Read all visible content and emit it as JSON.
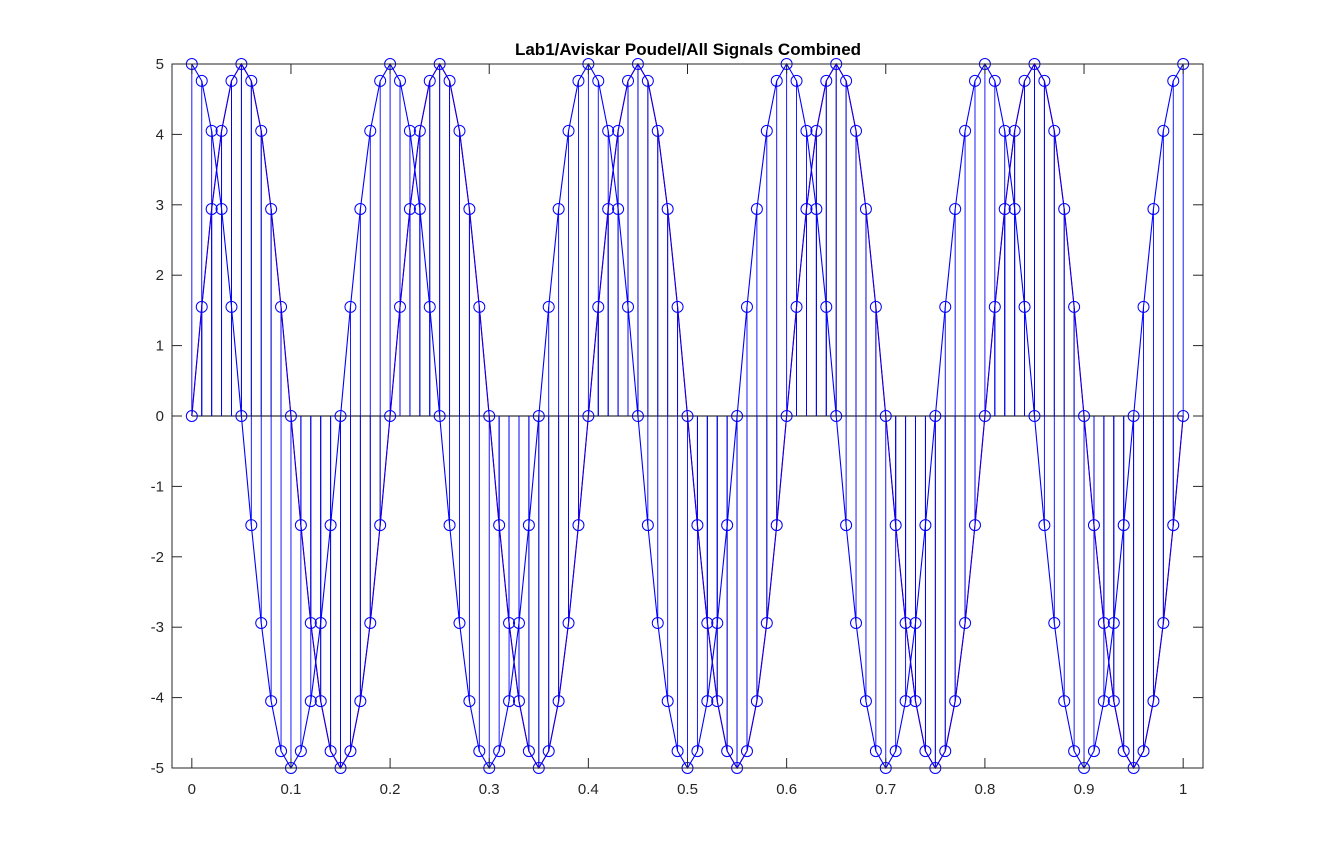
{
  "chart_data": {
    "type": "line",
    "title": "Lab1/Aviskar Poudel/All Signals Combined",
    "xlabel": "",
    "ylabel": "",
    "xlim": [
      -0.02,
      1.02
    ],
    "ylim": [
      -5,
      5
    ],
    "xticks": [
      "0",
      "0.1",
      "0.2",
      "0.3",
      "0.4",
      "0.5",
      "0.6",
      "0.7",
      "0.8",
      "0.9",
      "1"
    ],
    "yticks": [
      "-5",
      "-4",
      "-3",
      "-2",
      "-1",
      "0",
      "1",
      "2",
      "3",
      "4",
      "5"
    ],
    "grid": false,
    "legend": "none",
    "x": [
      0,
      0.01,
      0.02,
      0.03,
      0.04,
      0.05,
      0.06,
      0.07,
      0.08,
      0.09,
      0.1,
      0.11,
      0.12,
      0.13,
      0.14,
      0.15,
      0.16,
      0.17,
      0.18,
      0.19,
      0.2,
      0.21,
      0.22,
      0.23,
      0.24,
      0.25,
      0.26,
      0.27,
      0.28,
      0.29,
      0.3,
      0.31,
      0.32,
      0.33,
      0.34,
      0.35,
      0.36,
      0.37,
      0.38,
      0.39,
      0.4,
      0.41,
      0.42,
      0.43,
      0.44,
      0.45,
      0.46,
      0.47,
      0.48,
      0.49,
      0.5,
      0.51,
      0.52,
      0.53,
      0.54,
      0.55,
      0.56,
      0.57,
      0.58,
      0.59,
      0.6,
      0.61,
      0.62,
      0.63,
      0.64,
      0.65,
      0.66,
      0.67,
      0.68,
      0.69,
      0.7,
      0.71,
      0.72,
      0.73,
      0.74,
      0.75,
      0.76,
      0.77,
      0.78,
      0.79,
      0.8,
      0.81,
      0.82,
      0.83,
      0.84,
      0.85,
      0.86,
      0.87,
      0.88,
      0.89,
      0.9,
      0.91,
      0.92,
      0.93,
      0.94,
      0.95,
      0.96,
      0.97,
      0.98,
      0.99,
      1
    ],
    "series": [
      {
        "color": "#ff0000",
        "marker": "none",
        "stem": true,
        "stem_color": "#000000",
        "values": [
          0,
          1.55,
          2.94,
          4.05,
          4.76,
          5,
          4.76,
          4.05,
          2.94,
          1.55,
          0,
          -1.55,
          -2.94,
          -4.05,
          -4.76,
          -5,
          -4.76,
          -4.05,
          -2.94,
          -1.55,
          0,
          1.55,
          2.94,
          4.05,
          4.76,
          5,
          4.76,
          4.05,
          2.94,
          1.55,
          0,
          -1.55,
          -2.94,
          -4.05,
          -4.76,
          -5,
          -4.76,
          -4.05,
          -2.94,
          -1.55,
          0,
          1.55,
          2.94,
          4.05,
          4.76,
          5,
          4.76,
          4.05,
          2.94,
          1.55,
          0,
          -1.55,
          -2.94,
          -4.05,
          -4.76,
          -5,
          -4.76,
          -4.05,
          -2.94,
          -1.55,
          0,
          1.55,
          2.94,
          4.05,
          4.76,
          5,
          4.76,
          4.05,
          2.94,
          1.55,
          0,
          -1.55,
          -2.94,
          -4.05,
          -4.76,
          -5,
          -4.76,
          -4.05,
          -2.94,
          -1.55,
          0,
          1.55,
          2.94,
          4.05,
          4.76,
          5,
          4.76,
          4.05,
          2.94,
          1.55,
          0,
          -1.55,
          -2.94,
          -4.05,
          -4.76,
          -5,
          -4.76,
          -4.05,
          -2.94,
          -1.55,
          0
        ]
      },
      {
        "color": "#0000ff",
        "marker": "circle",
        "stem": true,
        "stem_color": "#0000ff",
        "values": [
          0,
          1.55,
          2.94,
          4.05,
          4.76,
          5,
          4.76,
          4.05,
          2.94,
          1.55,
          0,
          -1.55,
          -2.94,
          -4.05,
          -4.76,
          -5,
          -4.76,
          -4.05,
          -2.94,
          -1.55,
          0,
          1.55,
          2.94,
          4.05,
          4.76,
          5,
          4.76,
          4.05,
          2.94,
          1.55,
          0,
          -1.55,
          -2.94,
          -4.05,
          -4.76,
          -5,
          -4.76,
          -4.05,
          -2.94,
          -1.55,
          0,
          1.55,
          2.94,
          4.05,
          4.76,
          5,
          4.76,
          4.05,
          2.94,
          1.55,
          0,
          -1.55,
          -2.94,
          -4.05,
          -4.76,
          -5,
          -4.76,
          -4.05,
          -2.94,
          -1.55,
          0,
          1.55,
          2.94,
          4.05,
          4.76,
          5,
          4.76,
          4.05,
          2.94,
          1.55,
          0,
          -1.55,
          -2.94,
          -4.05,
          -4.76,
          -5,
          -4.76,
          -4.05,
          -2.94,
          -1.55,
          0,
          1.55,
          2.94,
          4.05,
          4.76,
          5,
          4.76,
          4.05,
          2.94,
          1.55,
          0,
          -1.55,
          -2.94,
          -4.05,
          -4.76,
          -5,
          -4.76,
          -4.05,
          -2.94,
          -1.55,
          0
        ]
      },
      {
        "color": "#0000ff",
        "marker": "circle",
        "stem": true,
        "stem_color": "#0000ff",
        "values": [
          5,
          4.76,
          4.05,
          2.94,
          1.55,
          0,
          -1.55,
          -2.94,
          -4.05,
          -4.76,
          -5,
          -4.76,
          -4.05,
          -2.94,
          -1.55,
          0,
          1.55,
          2.94,
          4.05,
          4.76,
          5,
          4.76,
          4.05,
          2.94,
          1.55,
          0,
          -1.55,
          -2.94,
          -4.05,
          -4.76,
          -5,
          -4.76,
          -4.05,
          -2.94,
          -1.55,
          0,
          1.55,
          2.94,
          4.05,
          4.76,
          5,
          4.76,
          4.05,
          2.94,
          1.55,
          0,
          -1.55,
          -2.94,
          -4.05,
          -4.76,
          -5,
          -4.76,
          -4.05,
          -2.94,
          -1.55,
          0,
          1.55,
          2.94,
          4.05,
          4.76,
          5,
          4.76,
          4.05,
          2.94,
          1.55,
          0,
          -1.55,
          -2.94,
          -4.05,
          -4.76,
          -5,
          -4.76,
          -4.05,
          -2.94,
          -1.55,
          0,
          1.55,
          2.94,
          4.05,
          4.76,
          5,
          4.76,
          4.05,
          2.94,
          1.55,
          0,
          -1.55,
          -2.94,
          -4.05,
          -4.76,
          -5,
          -4.76,
          -4.05,
          -2.94,
          -1.55,
          0,
          1.55,
          2.94,
          4.05,
          4.76,
          5
        ]
      }
    ]
  }
}
